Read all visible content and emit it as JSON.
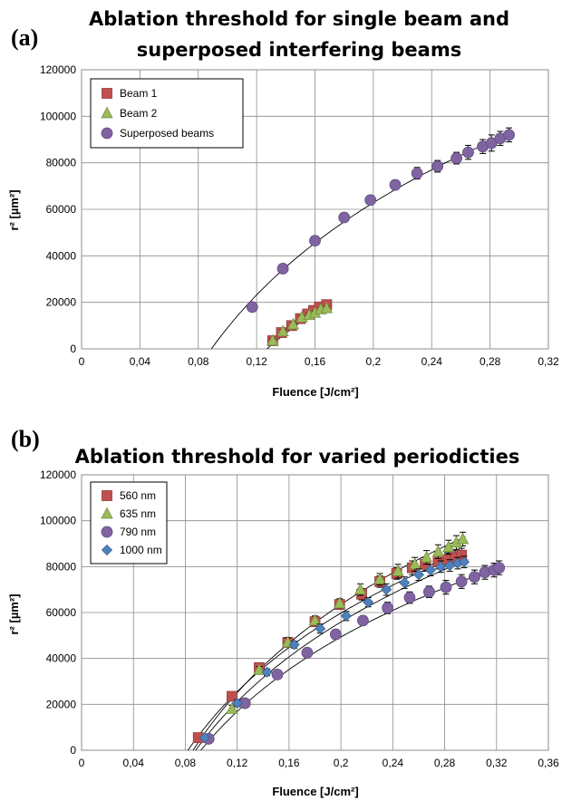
{
  "chart_data": [
    {
      "panel": "(a)",
      "type": "scatter",
      "title": [
        "Ablation threshold for single beam and",
        "superposed interfering beams"
      ],
      "xlabel": "Fluence [J/cm²]",
      "ylabel": "r² [µm²]",
      "xlim": [
        0,
        0.32
      ],
      "ylim": [
        0,
        120000
      ],
      "xticks": [
        0,
        0.04,
        0.08,
        0.12,
        0.16,
        0.2,
        0.24,
        0.28,
        0.32
      ],
      "xtick_labels": [
        "0",
        "0,04",
        "0,08",
        "0,12",
        "0,16",
        "0,2",
        "0,24",
        "0,28",
        "0,32"
      ],
      "yticks": [
        0,
        20000,
        40000,
        60000,
        80000,
        100000,
        120000
      ],
      "ytick_labels": [
        "0",
        "20000",
        "40000",
        "60000",
        "80000",
        "100000",
        "120000"
      ],
      "grid": true,
      "legend_position": "top-left",
      "series": [
        {
          "name": "Beam 1",
          "marker": "square",
          "color": "#c0504d",
          "x": [
            0.131,
            0.137,
            0.144,
            0.15,
            0.155,
            0.159,
            0.163,
            0.168
          ],
          "y": [
            3500,
            7000,
            10000,
            13000,
            15000,
            16500,
            18000,
            19000
          ],
          "err": [
            800,
            800,
            800,
            800,
            800,
            800,
            800,
            800
          ]
        },
        {
          "name": "Beam 2",
          "marker": "triangle",
          "color": "#9bbb59",
          "x": [
            0.131,
            0.138,
            0.145,
            0.151,
            0.156,
            0.16,
            0.164,
            0.168
          ],
          "y": [
            3500,
            7500,
            10500,
            13500,
            14500,
            15500,
            17000,
            17500
          ],
          "err": [
            800,
            800,
            800,
            800,
            800,
            800,
            800,
            800
          ]
        },
        {
          "name": "Superposed beams",
          "marker": "circle",
          "color": "#8064a2",
          "x": [
            0.117,
            0.138,
            0.16,
            0.18,
            0.198,
            0.215,
            0.23,
            0.244,
            0.257,
            0.265,
            0.275,
            0.281,
            0.287,
            0.293
          ],
          "y": [
            18000,
            34500,
            46500,
            56500,
            64000,
            70500,
            75500,
            78500,
            82000,
            84500,
            87000,
            88500,
            90500,
            92000
          ],
          "err": [
            0,
            1500,
            1500,
            2000,
            1500,
            2000,
            2500,
            2500,
            2500,
            3000,
            3000,
            3500,
            3000,
            3000
          ]
        }
      ],
      "fits": [
        {
          "x": [
            0.127,
            0.17
          ],
          "y": [
            0,
            20000
          ]
        },
        {
          "x": [
            0.089,
            0.295
          ],
          "y": [
            0,
            93000
          ]
        }
      ]
    },
    {
      "panel": "(b)",
      "type": "scatter",
      "title": [
        "Ablation threshold for varied periodicties"
      ],
      "xlabel": "Fluence [J/cm²]",
      "ylabel": "r² [µm²]",
      "xlim": [
        0,
        0.36
      ],
      "ylim": [
        0,
        120000
      ],
      "xticks": [
        0,
        0.04,
        0.08,
        0.12,
        0.16,
        0.2,
        0.24,
        0.28,
        0.32,
        0.36
      ],
      "xtick_labels": [
        "0",
        "0,04",
        "0,08",
        "0,12",
        "0,16",
        "0,2",
        "0,24",
        "0,28",
        "0,32",
        "0,36"
      ],
      "yticks": [
        0,
        20000,
        40000,
        60000,
        80000,
        100000,
        120000
      ],
      "ytick_labels": [
        "0",
        "20000",
        "40000",
        "60000",
        "80000",
        "100000",
        "120000"
      ],
      "grid": true,
      "legend_position": "top-left",
      "series": [
        {
          "name": "560 nm",
          "marker": "square",
          "color": "#c0504d",
          "x": [
            0.09,
            0.116,
            0.137,
            0.159,
            0.18,
            0.199,
            0.216,
            0.23,
            0.243,
            0.255,
            0.265,
            0.275,
            0.282,
            0.288,
            0.293
          ],
          "y": [
            5500,
            23500,
            36000,
            47000,
            56000,
            63500,
            68000,
            73500,
            77000,
            79500,
            81000,
            82000,
            83000,
            84000,
            85000
          ],
          "err": [
            0,
            1500,
            1500,
            2000,
            2000,
            2000,
            2500,
            2500,
            2500,
            3000,
            3000,
            3000,
            3000,
            3000,
            3000
          ]
        },
        {
          "name": "635 nm",
          "marker": "triangle",
          "color": "#9bbb59",
          "x": [
            0.116,
            0.137,
            0.159,
            0.18,
            0.199,
            0.215,
            0.23,
            0.244,
            0.257,
            0.266,
            0.275,
            0.283,
            0.289,
            0.294
          ],
          "y": [
            18000,
            35000,
            47000,
            56500,
            64000,
            70000,
            74500,
            78000,
            81000,
            84000,
            86500,
            88500,
            90500,
            92000
          ],
          "err": [
            1500,
            1500,
            2000,
            2000,
            2000,
            2500,
            2500,
            3000,
            3000,
            3000,
            3000,
            3000,
            3000,
            3000
          ]
        },
        {
          "name": "790 nm",
          "marker": "circle",
          "color": "#8064a2",
          "x": [
            0.098,
            0.126,
            0.151,
            0.174,
            0.196,
            0.217,
            0.236,
            0.253,
            0.268,
            0.281,
            0.293,
            0.303,
            0.311,
            0.318,
            0.322
          ],
          "y": [
            5000,
            20500,
            33000,
            42500,
            50500,
            56500,
            62000,
            66500,
            69000,
            71000,
            73500,
            75500,
            77500,
            78500,
            79500
          ],
          "err": [
            0,
            1500,
            1500,
            1500,
            2000,
            2000,
            2500,
            2500,
            2500,
            3000,
            3000,
            3000,
            3000,
            3000,
            3000
          ]
        },
        {
          "name": "1000 nm",
          "marker": "diamond",
          "color": "#4f81bd",
          "x": [
            0.095,
            0.12,
            0.143,
            0.164,
            0.184,
            0.204,
            0.221,
            0.235,
            0.249,
            0.26,
            0.269,
            0.277,
            0.284,
            0.29,
            0.295
          ],
          "y": [
            5500,
            20500,
            34000,
            46000,
            53000,
            58500,
            64500,
            70000,
            73000,
            76500,
            78500,
            80000,
            80500,
            81500,
            82000
          ],
          "err": [
            0,
            1500,
            1500,
            1500,
            2000,
            2000,
            2000,
            2500,
            2500,
            2500,
            2500,
            2500,
            2500,
            2500,
            2500
          ]
        }
      ],
      "fits": [
        {
          "x": [
            0.082,
            0.296
          ],
          "y": [
            0,
            86000
          ]
        },
        {
          "x": [
            0.086,
            0.296
          ],
          "y": [
            0,
            93000
          ]
        },
        {
          "x": [
            0.092,
            0.324
          ],
          "y": [
            0,
            80000
          ]
        },
        {
          "x": [
            0.088,
            0.298
          ],
          "y": [
            0,
            83000
          ]
        }
      ]
    }
  ]
}
